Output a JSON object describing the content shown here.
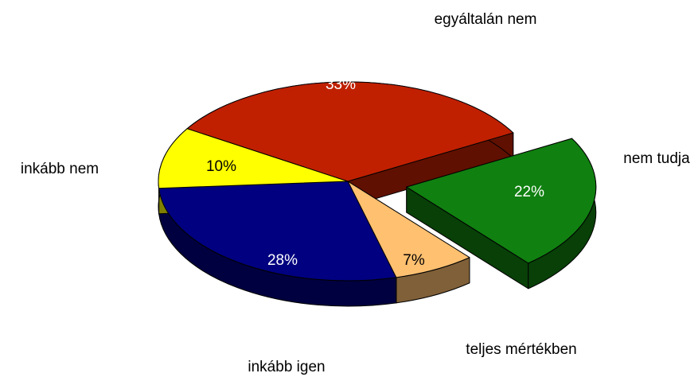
{
  "chart_data": {
    "type": "pie",
    "categories": [
      "egyáltalán nem",
      "nem tudja",
      "teljes mértékben",
      "inkább igen",
      "inkább nem"
    ],
    "values": [
      33,
      22,
      7,
      28,
      10
    ],
    "value_labels": [
      "33%",
      "22%",
      "7%",
      "28%",
      "10%"
    ],
    "colors": [
      "#c02000",
      "#108010",
      "#ffc070",
      "#000080",
      "#ffff00"
    ],
    "exploded": "nem tudja"
  }
}
